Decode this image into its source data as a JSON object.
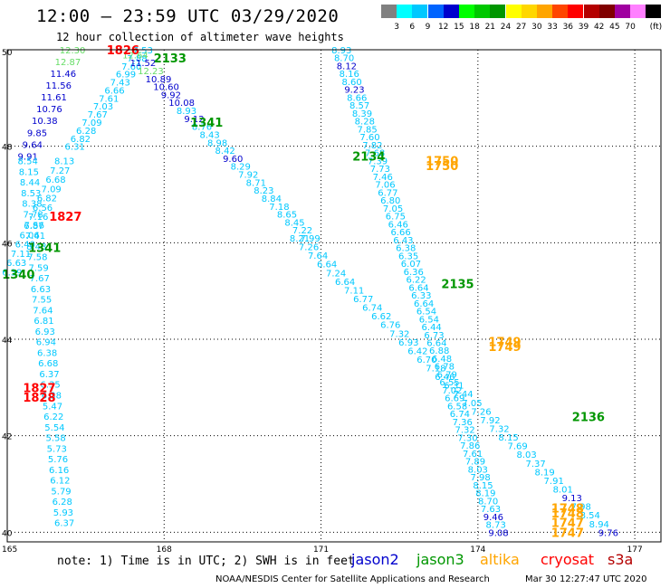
{
  "header": {
    "title": "12:00 – 23:59 UTC 03/29/2020",
    "subtitle": "12 hour collection of altimeter wave heights"
  },
  "legend": {
    "unit_label": "(ft)",
    "bins": [
      {
        "label": "",
        "color": "#808080"
      },
      {
        "label": "3",
        "color": "#00ffff"
      },
      {
        "label": "6",
        "color": "#00c8ff"
      },
      {
        "label": "9",
        "color": "#0064ff"
      },
      {
        "label": "12",
        "color": "#0000cd"
      },
      {
        "label": "15",
        "color": "#00ff00"
      },
      {
        "label": "18",
        "color": "#00c800"
      },
      {
        "label": "21",
        "color": "#009600"
      },
      {
        "label": "24",
        "color": "#ffff00"
      },
      {
        "label": "27",
        "color": "#ffd700"
      },
      {
        "label": "30",
        "color": "#ffa500"
      },
      {
        "label": "33",
        "color": "#ff4500"
      },
      {
        "label": "36",
        "color": "#ff0000"
      },
      {
        "label": "39",
        "color": "#b40000"
      },
      {
        "label": "42",
        "color": "#800000"
      },
      {
        "label": "45",
        "color": "#a000a0"
      },
      {
        "label": "70",
        "color": "#ff80ff"
      },
      {
        "label": "",
        "color": "#000000"
      }
    ]
  },
  "footer": {
    "note": "note: 1) Time is in UTC; 2) SWH is in feet",
    "satellites": [
      {
        "name": "jason2",
        "color": "#0000cd"
      },
      {
        "name": "jason3",
        "color": "#009600"
      },
      {
        "name": "altika",
        "color": "#ffa500"
      },
      {
        "name": "cryosat",
        "color": "#ff0000"
      },
      {
        "name": "s3a",
        "color": "#b40000"
      }
    ],
    "credit": "NOAA/NESDIS Center for Satellite Applications and Research",
    "timestamp": "Mar 30 12:27:47 UTC 2020"
  },
  "chart_data": {
    "type": "scatter",
    "title": "12:00 – 23:59 UTC 03/29/2020",
    "subtitle": "12 hour collection of altimeter wave heights",
    "x_ticks": [
      "165",
      "168",
      "171",
      "174",
      "177"
    ],
    "y_ticks": [
      "50",
      "48",
      "46",
      "44",
      "42",
      "40"
    ],
    "xlim": [
      165,
      177.5
    ],
    "ylim": [
      39.8,
      50
    ],
    "grid": true,
    "colors": {
      "cyan": "#00c8ff",
      "blue": "#0000cd",
      "green": "#009600",
      "lightgreen": "#66dd66",
      "orange": "#ffa500",
      "red": "#ff0000"
    },
    "time_labels": [
      {
        "text": "1826",
        "lon": 166.9,
        "lat": 50.0,
        "color": "red"
      },
      {
        "text": "2133",
        "lon": 167.8,
        "lat": 49.83,
        "color": "green"
      },
      {
        "text": "1341",
        "lon": 168.5,
        "lat": 48.5,
        "color": "green"
      },
      {
        "text": "2134",
        "lon": 171.6,
        "lat": 47.8,
        "color": "green"
      },
      {
        "text": "1750",
        "lon": 173.0,
        "lat": 47.7,
        "color": "orange"
      },
      {
        "text": "1750",
        "lon": 173.0,
        "lat": 47.6,
        "color": "orange"
      },
      {
        "text": "1827",
        "lon": 165.8,
        "lat": 46.55,
        "color": "red"
      },
      {
        "text": "1341",
        "lon": 165.4,
        "lat": 45.9,
        "color": "green"
      },
      {
        "text": "1340",
        "lon": 164.9,
        "lat": 45.35,
        "color": "green"
      },
      {
        "text": "2135",
        "lon": 173.3,
        "lat": 45.15,
        "color": "green"
      },
      {
        "text": "1749",
        "lon": 174.2,
        "lat": 43.95,
        "color": "orange"
      },
      {
        "text": "1749",
        "lon": 174.2,
        "lat": 43.85,
        "color": "orange"
      },
      {
        "text": "1827",
        "lon": 165.3,
        "lat": 43.0,
        "color": "red"
      },
      {
        "text": "1828",
        "lon": 165.3,
        "lat": 42.8,
        "color": "red"
      },
      {
        "text": "2136",
        "lon": 175.8,
        "lat": 42.4,
        "color": "green"
      },
      {
        "text": "1748",
        "lon": 175.4,
        "lat": 40.5,
        "color": "orange"
      },
      {
        "text": "1748",
        "lon": 175.4,
        "lat": 40.4,
        "color": "orange"
      },
      {
        "text": "1747",
        "lon": 175.4,
        "lat": 40.2,
        "color": "orange"
      },
      {
        "text": "1747",
        "lon": 175.4,
        "lat": 40.0,
        "color": "orange"
      }
    ],
    "tracks": [
      {
        "name": "track-1",
        "start": [
          166.0,
          50.0
        ],
        "end": [
          165.2,
          47.8
        ],
        "color": "blue",
        "values": [
          "12.30",
          "12.87",
          "11.46",
          "11.56",
          "11.61",
          "10.76",
          "10.38",
          "9.85",
          "9.64",
          "9.91"
        ],
        "value_colors": [
          "lightgreen",
          "lightgreen",
          "blue",
          "blue",
          "blue",
          "blue",
          "blue",
          "blue",
          "blue",
          "blue"
        ]
      },
      {
        "name": "track-2",
        "start": [
          165.2,
          47.7
        ],
        "end": [
          165.9,
          40.2
        ],
        "color": "cyan",
        "values": [
          "8.54",
          "8.15",
          "8.44",
          "8.53",
          "8.38",
          "7.78",
          "7.56",
          "7.41",
          "8.48",
          "7.58",
          "7.59",
          "7.67",
          "6.63",
          "7.55",
          "7.64",
          "6.81",
          "6.93",
          "6.94",
          "6.38",
          "6.68",
          "6.37",
          "6.35",
          "6.38",
          "5.47",
          "6.22",
          "5.54",
          "5.58",
          "5.73",
          "5.76",
          "6.16",
          "6.12",
          "5.79",
          "6.28",
          "5.93",
          "6.37"
        ]
      },
      {
        "name": "track-3",
        "start": [
          165.9,
          47.7
        ],
        "end": [
          164.9,
          45.4
        ],
        "color": "cyan",
        "values": [
          "8.13",
          "7.27",
          "6.68",
          "7.09",
          "6.82",
          "6.56",
          "7.16",
          "6.87",
          "6.06",
          "6.40",
          "7.11",
          "6.63",
          "6.39"
        ]
      },
      {
        "name": "track-4",
        "start": [
          167.4,
          50.0
        ],
        "end": [
          166.1,
          48.0
        ],
        "color": "cyan",
        "values": [
          "7.53",
          "7.88",
          "7.60",
          "6.99",
          "7.43",
          "6.66",
          "7.61",
          "7.03",
          "7.67",
          "7.09",
          "6.28",
          "6.82",
          "6.31"
        ],
        "value_colors": [
          "cyan",
          "cyan",
          "cyan",
          "cyan",
          "cyan",
          "cyan",
          "cyan",
          "cyan",
          "cyan",
          "cyan",
          "cyan",
          "cyan",
          "cyan"
        ]
      },
      {
        "name": "track-5",
        "start": [
          167.2,
          49.9
        ],
        "end": [
          170.6,
          46.1
        ],
        "color": "cyan",
        "values": [
          "12.64",
          "11.52",
          "12.23",
          "10.89",
          "10.60",
          "9.92",
          "10.08",
          "8.93",
          "9.12",
          "8.76",
          "8.43",
          "8.98",
          "8.42",
          "9.60",
          "8.29",
          "7.92",
          "8.71",
          "8.23",
          "8.84",
          "7.18",
          "8.65",
          "8.45",
          "7.22",
          "7.99"
        ],
        "value_colors": [
          "lightgreen",
          "blue",
          "lightgreen",
          "blue",
          "blue",
          "blue",
          "blue",
          "cyan",
          "blue",
          "cyan",
          "cyan",
          "cyan",
          "cyan",
          "blue",
          "cyan",
          "cyan",
          "cyan",
          "cyan",
          "cyan",
          "cyan",
          "cyan",
          "cyan",
          "cyan",
          "cyan"
        ]
      },
      {
        "name": "track-6",
        "start": [
          171.2,
          50.0
        ],
        "end": [
          174.2,
          40.0
        ],
        "color": "cyan",
        "values": [
          "8.93",
          "8.70",
          "8.12",
          "8.16",
          "8.60",
          "9.23",
          "8.66",
          "8.57",
          "8.39",
          "8.28",
          "7.85",
          "7.60",
          "7.82",
          "7.68",
          "7.39",
          "7.73",
          "7.46",
          "7.06",
          "6.77",
          "6.80",
          "7.05",
          "6.75",
          "6.46",
          "6.66",
          "6.43",
          "6.38",
          "6.35",
          "6.07",
          "6.36",
          "6.22",
          "6.64",
          "6.33",
          "6.64",
          "6.54",
          "6.54",
          "6.44",
          "6.73",
          "6.64",
          "6.88",
          "6.48",
          "6.78",
          "6.79",
          "6.55",
          "7.02",
          "6.69",
          "6.58",
          "6.74",
          "7.36",
          "7.32",
          "7.30",
          "7.86",
          "7.61",
          "7.89",
          "8.03",
          "7.98",
          "8.15",
          "8.19",
          "8.70",
          "7.63",
          "9.46",
          "8.73",
          "9.08"
        ],
        "value_colors": [
          "cyan",
          "cyan",
          "blue",
          "cyan",
          "cyan",
          "blue",
          "cyan",
          "cyan",
          "cyan",
          "cyan",
          "cyan",
          "cyan",
          "cyan",
          "cyan",
          "cyan",
          "cyan",
          "cyan",
          "cyan",
          "cyan",
          "cyan",
          "cyan",
          "cyan",
          "cyan",
          "cyan",
          "cyan",
          "cyan",
          "cyan",
          "cyan",
          "cyan",
          "cyan",
          "cyan",
          "cyan",
          "cyan",
          "cyan",
          "cyan",
          "cyan",
          "cyan",
          "cyan",
          "cyan",
          "cyan",
          "cyan",
          "cyan",
          "cyan",
          "cyan",
          "cyan",
          "cyan",
          "cyan",
          "cyan",
          "cyan",
          "cyan",
          "cyan",
          "cyan",
          "cyan",
          "cyan",
          "cyan",
          "cyan",
          "cyan",
          "cyan",
          "cyan",
          "blue",
          "cyan",
          "blue"
        ]
      },
      {
        "name": "track-7",
        "start": [
          170.4,
          46.1
        ],
        "end": [
          176.3,
          40.0
        ],
        "color": "cyan",
        "values": [
          "8.21",
          "7.26",
          "7.64",
          "6.64",
          "7.24",
          "6.64",
          "7.11",
          "6.77",
          "6.74",
          "6.62",
          "6.76",
          "7.32",
          "6.93",
          "6.42",
          "6.70",
          "7.18",
          "6.46",
          "6.31",
          "7.44",
          "7.05",
          "7.26",
          "7.92",
          "7.32",
          "8.15",
          "7.69",
          "8.03",
          "7.37",
          "8.19",
          "7.91",
          "8.01",
          "9.13",
          "7.98",
          "8.54",
          "8.94",
          "9.76"
        ],
        "value_colors": [
          "cyan",
          "cyan",
          "cyan",
          "cyan",
          "cyan",
          "cyan",
          "cyan",
          "cyan",
          "cyan",
          "cyan",
          "cyan",
          "cyan",
          "cyan",
          "cyan",
          "cyan",
          "cyan",
          "cyan",
          "cyan",
          "cyan",
          "cyan",
          "cyan",
          "cyan",
          "cyan",
          "cyan",
          "cyan",
          "cyan",
          "cyan",
          "cyan",
          "cyan",
          "cyan",
          "blue",
          "cyan",
          "cyan",
          "cyan",
          "blue"
        ]
      }
    ]
  }
}
